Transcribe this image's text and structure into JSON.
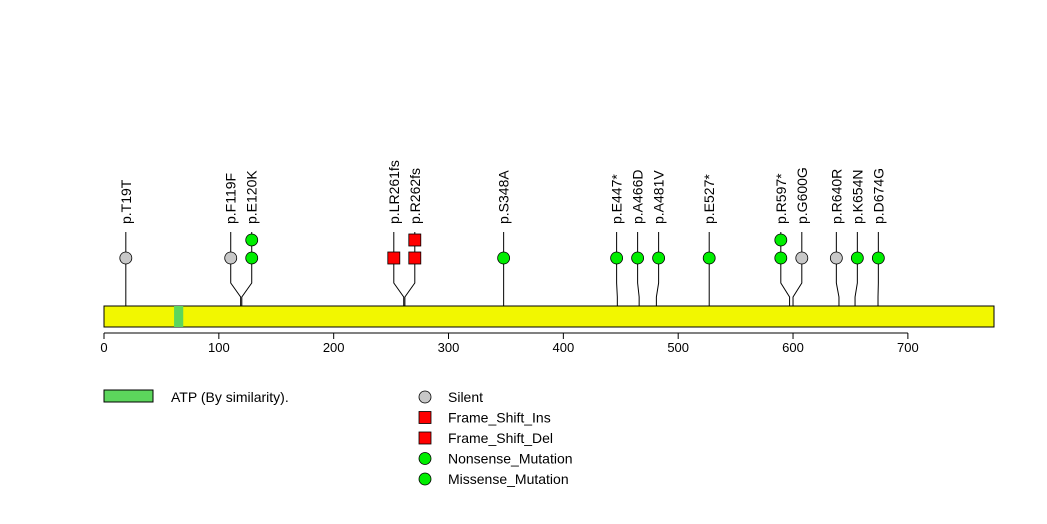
{
  "chart_data": {
    "type": "lollipop",
    "title": "",
    "xlabel": "",
    "ylabel": "",
    "xlim": [
      0,
      775
    ],
    "x_ticks": [
      0,
      100,
      200,
      300,
      400,
      500,
      600,
      700
    ],
    "protein_length": 775,
    "colors": {
      "protein_bar": "#f2f700",
      "domain": "#5cd65c",
      "silent": "#c8c8c8",
      "frameshift": "#ff0000",
      "missense": "#00ee00",
      "stroke": "#000000"
    },
    "domains": [
      {
        "name": "ATP (By similarity).",
        "start": 61,
        "end": 69
      }
    ],
    "mutations": [
      {
        "label": "p.T19T",
        "position": 19,
        "type": "Silent",
        "shape": "circle",
        "color_key": "silent",
        "count": 1
      },
      {
        "label": "p.F119F",
        "position": 119,
        "type": "Silent",
        "shape": "circle",
        "color_key": "silent",
        "count": 1
      },
      {
        "label": "p.E120K",
        "position": 120,
        "type": "Missense_Mutation",
        "shape": "circle",
        "color_key": "missense",
        "count": 2
      },
      {
        "label": "p.LR261fs",
        "position": 261,
        "type": "Frame_Shift_Del",
        "shape": "square",
        "color_key": "frameshift",
        "count": 1
      },
      {
        "label": "p.R262fs",
        "position": 262,
        "type": "Frame_Shift_Ins",
        "shape": "square",
        "color_key": "frameshift",
        "count": 2
      },
      {
        "label": "p.S348A",
        "position": 348,
        "type": "Missense_Mutation",
        "shape": "circle",
        "color_key": "missense",
        "count": 1
      },
      {
        "label": "p.E447*",
        "position": 447,
        "type": "Nonsense_Mutation",
        "shape": "circle",
        "color_key": "missense",
        "count": 1
      },
      {
        "label": "p.A466D",
        "position": 466,
        "type": "Missense_Mutation",
        "shape": "circle",
        "color_key": "missense",
        "count": 1
      },
      {
        "label": "p.A481V",
        "position": 481,
        "type": "Missense_Mutation",
        "shape": "circle",
        "color_key": "missense",
        "count": 1
      },
      {
        "label": "p.E527*",
        "position": 527,
        "type": "Nonsense_Mutation",
        "shape": "circle",
        "color_key": "missense",
        "count": 1
      },
      {
        "label": "p.R597*",
        "position": 597,
        "type": "Nonsense_Mutation",
        "shape": "circle",
        "color_key": "missense",
        "count": 2
      },
      {
        "label": "p.G600G",
        "position": 600,
        "type": "Silent",
        "shape": "circle",
        "color_key": "silent",
        "count": 1
      },
      {
        "label": "p.R640R",
        "position": 640,
        "type": "Silent",
        "shape": "circle",
        "color_key": "silent",
        "count": 1
      },
      {
        "label": "p.K654N",
        "position": 654,
        "type": "Missense_Mutation",
        "shape": "circle",
        "color_key": "missense",
        "count": 1
      },
      {
        "label": "p.D674G",
        "position": 674,
        "type": "Missense_Mutation",
        "shape": "circle",
        "color_key": "missense",
        "count": 1
      }
    ],
    "legend": {
      "domain_entry": "ATP (By similarity).",
      "mutation_entries": [
        {
          "label": "Silent",
          "shape": "circle",
          "color_key": "silent"
        },
        {
          "label": "Frame_Shift_Ins",
          "shape": "square",
          "color_key": "frameshift"
        },
        {
          "label": "Frame_Shift_Del",
          "shape": "square",
          "color_key": "frameshift"
        },
        {
          "label": "Nonsense_Mutation",
          "shape": "circle",
          "color_key": "missense"
        },
        {
          "label": "Missense_Mutation",
          "shape": "circle",
          "color_key": "missense"
        }
      ]
    }
  }
}
